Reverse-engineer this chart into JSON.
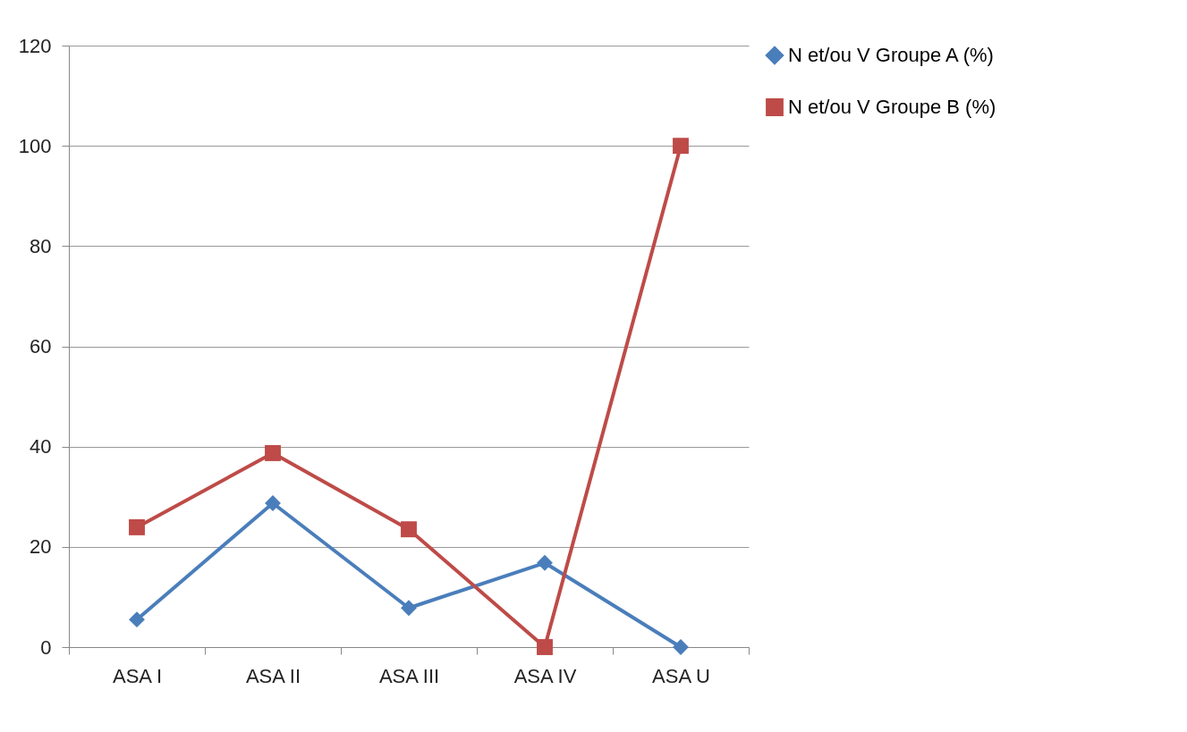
{
  "chart_data": {
    "type": "line",
    "categories": [
      "ASA I",
      "ASA II",
      "ASA III",
      "ASA IV",
      "ASA U"
    ],
    "series": [
      {
        "name": "N et/ou V  Groupe A (%)",
        "color": "#4a7ebb",
        "marker": "diamond",
        "values": [
          5.5,
          28.7,
          7.8,
          16.8,
          0
        ]
      },
      {
        "name": "N et/ou V  Groupe B (%)",
        "color": "#be4b48",
        "marker": "square",
        "values": [
          23.9,
          38.7,
          23.5,
          0,
          100
        ]
      }
    ],
    "ylim": [
      0,
      120
    ],
    "yticks": [
      0,
      20,
      40,
      60,
      80,
      100,
      120
    ],
    "grid": "y",
    "legend": "right",
    "line_style": "solid"
  }
}
